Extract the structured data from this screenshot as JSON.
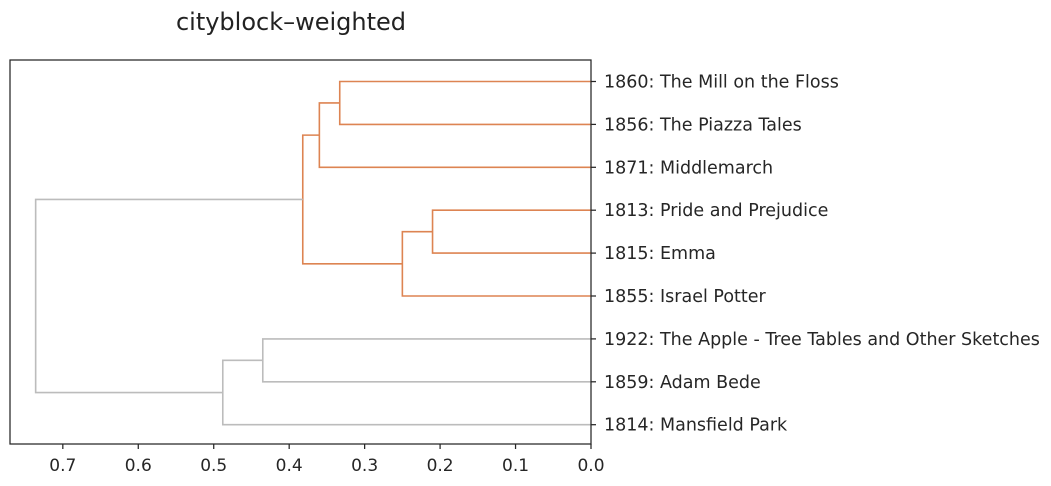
{
  "chart_data": {
    "type": "dendrogram",
    "title": "cityblock–weighted",
    "orientation": "left",
    "xlim": [
      0.77,
      0.0
    ],
    "x_ticks": [
      0.7,
      0.6,
      0.5,
      0.4,
      0.3,
      0.2,
      0.1,
      0.0
    ],
    "x_tick_labels": [
      "0.7",
      "0.6",
      "0.5",
      "0.4",
      "0.3",
      "0.2",
      "0.1",
      "0.0"
    ],
    "leaves": [
      "1860: The Mill on the Floss",
      "1856: The Piazza Tales",
      "1871: Middlemarch",
      "1813: Pride and Prejudice",
      "1815: Emma",
      "1855: Israel Potter",
      "1922: The Apple - Tree Tables and Other Sketches",
      "1859: Adam Bede",
      "1814: Mansfield Park"
    ],
    "merges": [
      {
        "id": "m1",
        "left": 0,
        "right": 1,
        "height": 0.333,
        "color": "#dd8452"
      },
      {
        "id": "m2",
        "left": "m1",
        "right": 2,
        "height": 0.36,
        "color": "#dd8452"
      },
      {
        "id": "m3",
        "left": 3,
        "right": 4,
        "height": 0.21,
        "color": "#dd8452"
      },
      {
        "id": "m4",
        "left": "m3",
        "right": 5,
        "height": 0.25,
        "color": "#dd8452"
      },
      {
        "id": "m5",
        "left": "m2",
        "right": "m4",
        "height": 0.382,
        "color": "#dd8452"
      },
      {
        "id": "m6",
        "left": 6,
        "right": 7,
        "height": 0.435,
        "color": "#bcbcbc"
      },
      {
        "id": "m7",
        "left": "m6",
        "right": 8,
        "height": 0.488,
        "color": "#bcbcbc"
      },
      {
        "id": "m8",
        "left": "m5",
        "right": "m7",
        "height": 0.736,
        "color": "#bcbcbc"
      }
    ]
  }
}
